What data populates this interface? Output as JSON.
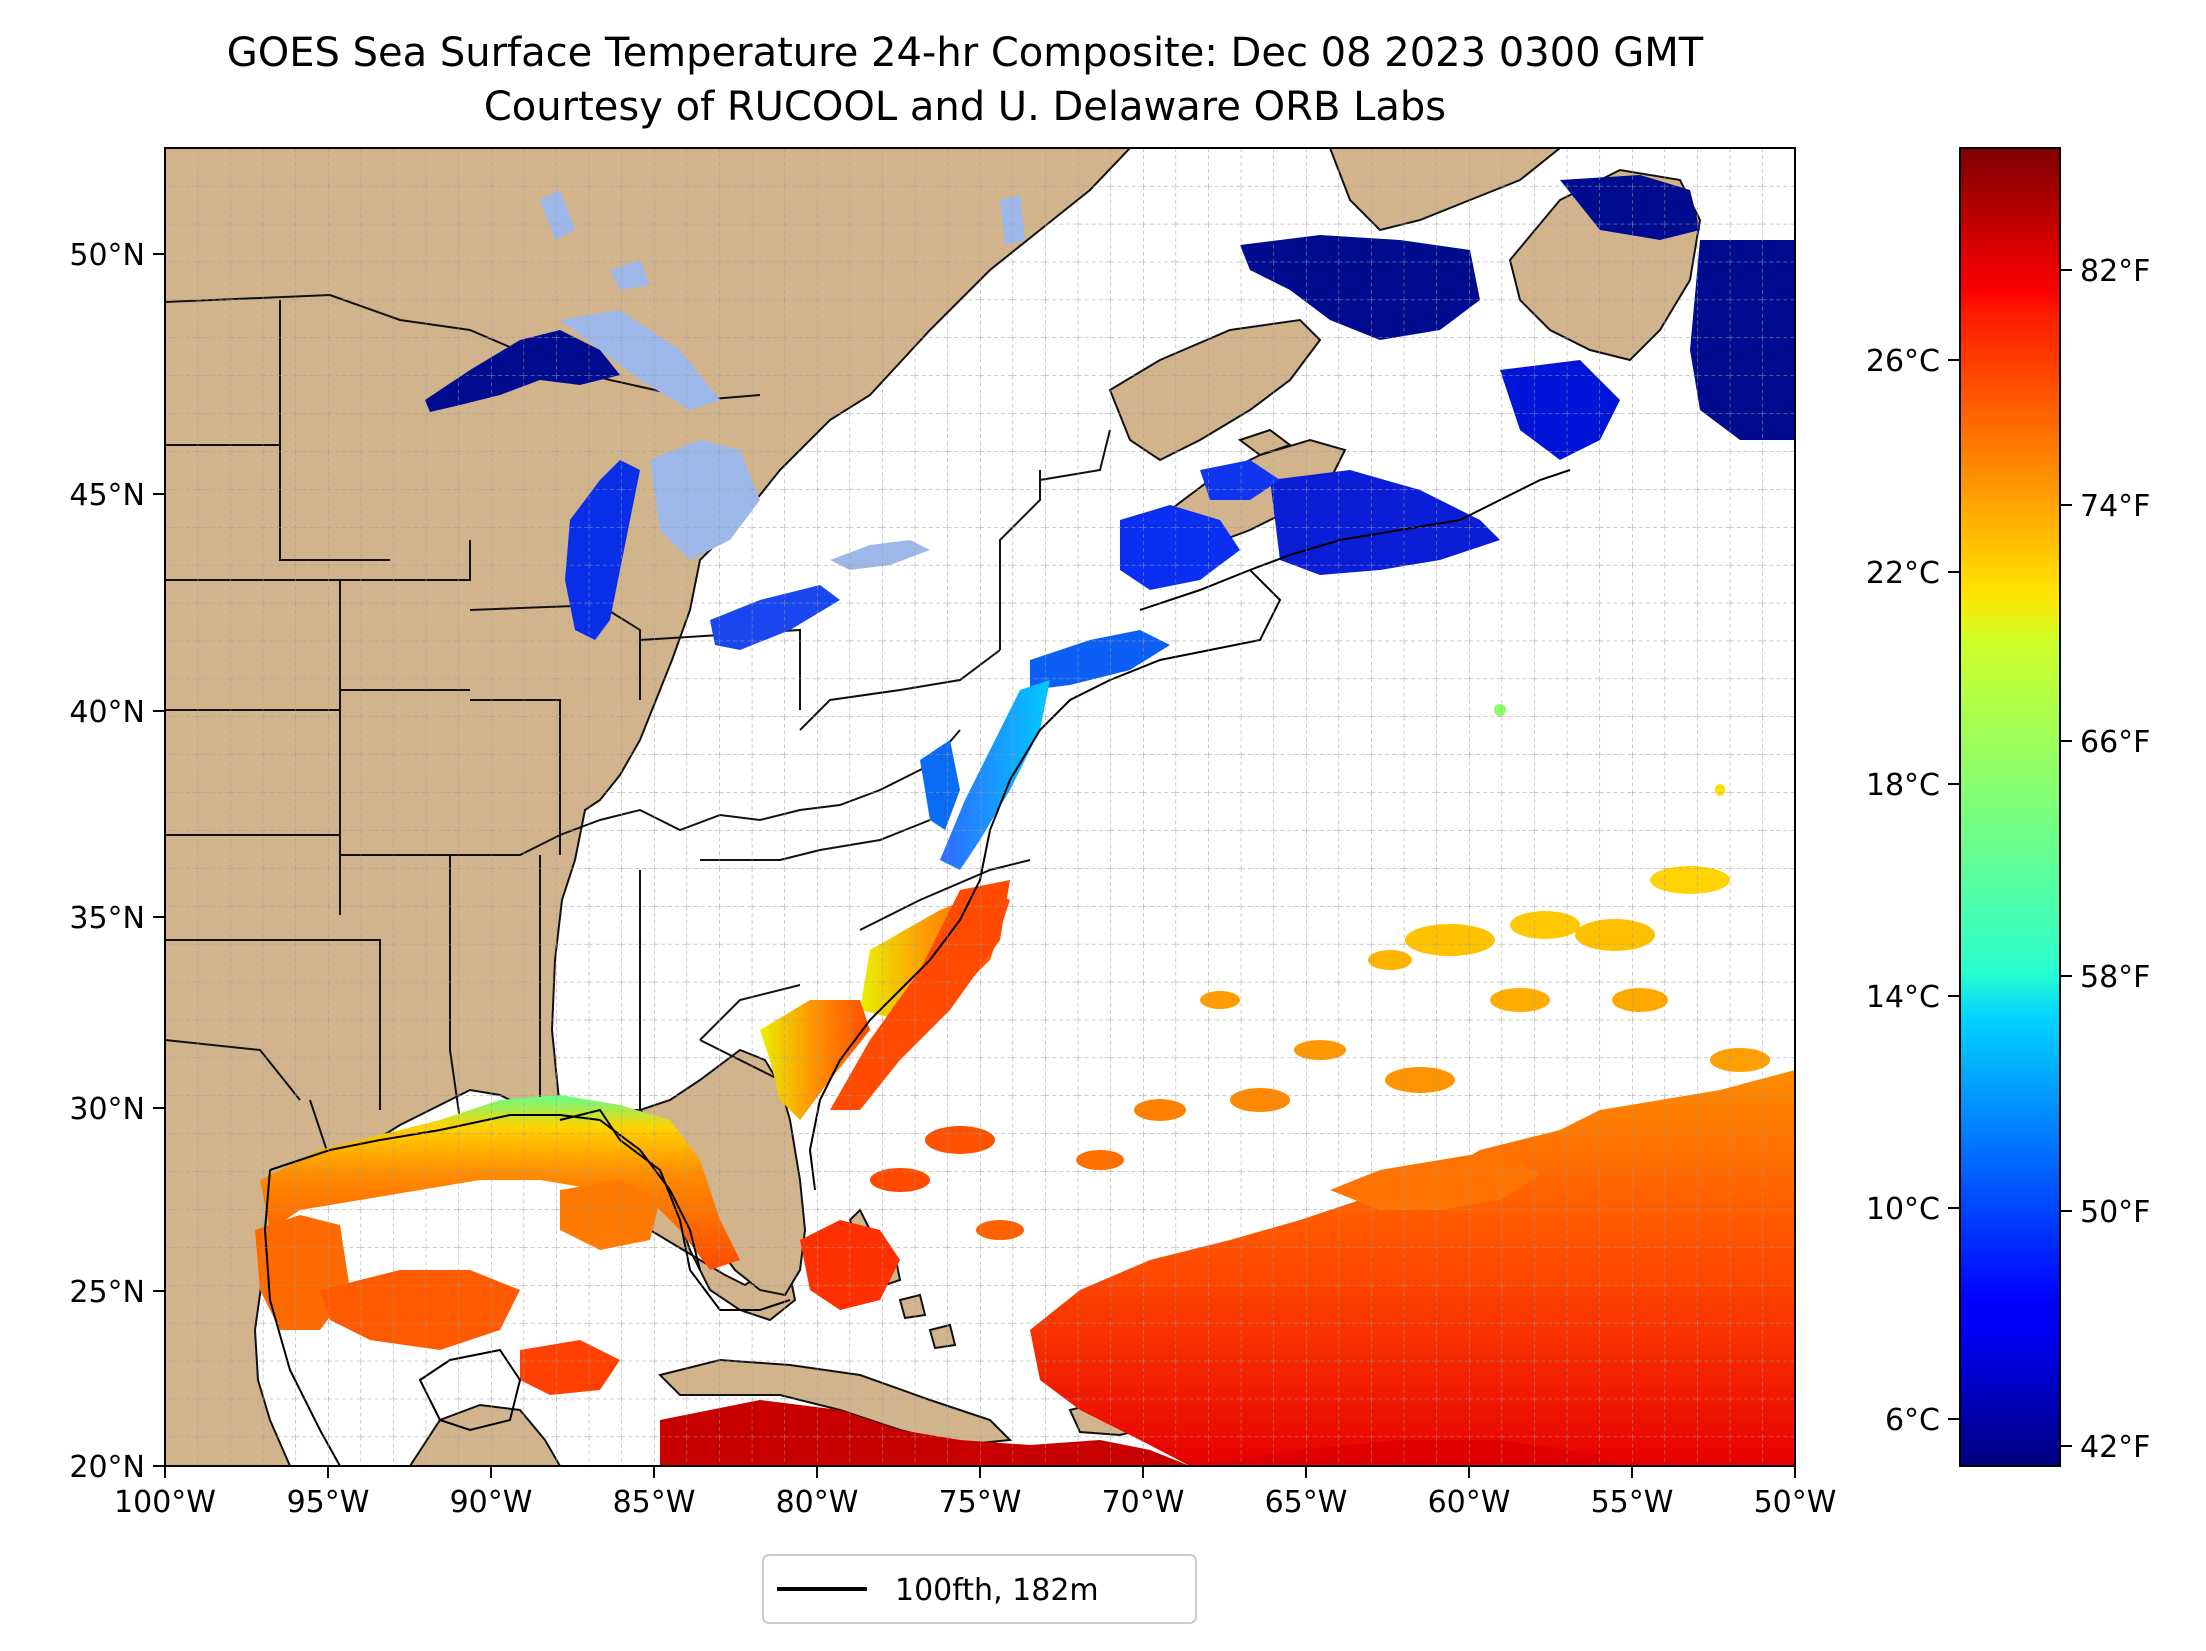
{
  "title": {
    "line1": "GOES Sea Surface Temperature 24-hr Composite: Dec 08 2023 0300 GMT",
    "line2": "Courtesy of RUCOOL and U. Delaware ORB Labs"
  },
  "map": {
    "lon_range": [
      -100,
      -50
    ],
    "lat_range": [
      20,
      52.2
    ],
    "x_tick_labels": [
      "100°W",
      "95°W",
      "90°W",
      "85°W",
      "80°W",
      "75°W",
      "70°W",
      "65°W",
      "60°W",
      "55°W",
      "50°W"
    ],
    "y_tick_labels": [
      "20°N",
      "25°N",
      "30°N",
      "35°N",
      "40°N",
      "45°N",
      "50°N"
    ],
    "grid": "dashed, 1 degree",
    "land_color": "#d2b48c",
    "ocean_nodata_color": "#ffffff"
  },
  "colorbar": {
    "colormap": "jet",
    "celsius_labels": [
      "26°C",
      "22°C",
      "18°C",
      "14°C",
      "10°C",
      "6°C"
    ],
    "fahrenheit_labels": [
      "82°F",
      "74°F",
      "66°F",
      "58°F",
      "50°F",
      "42°F"
    ]
  },
  "legend": {
    "label": "100fth, 182m",
    "line_color": "#000000",
    "placement": "bottom-center"
  }
}
